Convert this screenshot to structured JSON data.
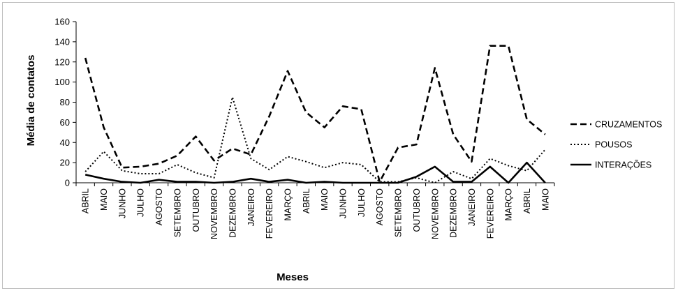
{
  "chart_data": {
    "type": "line",
    "xlabel": "Meses",
    "ylabel": "Média de contatos",
    "ylim": [
      0,
      160
    ],
    "ytick_step": 20,
    "grid": false,
    "legend_position": "right",
    "categories": [
      "ABRIL",
      "MAIO",
      "JUNHO",
      "JULHO",
      "AGOSTO",
      "SETEMBRO",
      "OUTUBRO",
      "NOVEMBRO",
      "DEZEMBRO",
      "JANEIRO",
      "FEVEREIRO",
      "MARÇO",
      "ABRIL",
      "MAIO",
      "JUNHO",
      "JULHO",
      "AGOSTO",
      "SETEMBRO",
      "OUTUBRO",
      "NOVEMBRO",
      "DEZEMBRO",
      "JANEIRO",
      "FEVEREIRO",
      "MARÇO",
      "ABRIL",
      "MAIO"
    ],
    "series": [
      {
        "name": "CRUZAMENTOS",
        "style": "dashed",
        "values": [
          124,
          55,
          15,
          16,
          19,
          27,
          46,
          22,
          34,
          28,
          66,
          111,
          70,
          55,
          76,
          73,
          1,
          35,
          38,
          114,
          48,
          21,
          136,
          136,
          63,
          48
        ]
      },
      {
        "name": "POUSOS",
        "style": "dotted",
        "values": [
          11,
          31,
          12,
          9,
          9,
          18,
          10,
          5,
          85,
          24,
          13,
          26,
          21,
          15,
          20,
          18,
          1,
          1,
          5,
          0,
          11,
          4,
          24,
          17,
          12,
          33
        ]
      },
      {
        "name": "INTERAÇÕES",
        "style": "solid",
        "values": [
          8,
          4,
          1,
          0,
          3,
          1,
          1,
          0,
          1,
          4,
          1,
          3,
          0,
          1,
          0,
          0,
          0,
          0,
          6,
          16,
          1,
          1,
          16,
          0,
          20,
          0
        ]
      }
    ]
  }
}
